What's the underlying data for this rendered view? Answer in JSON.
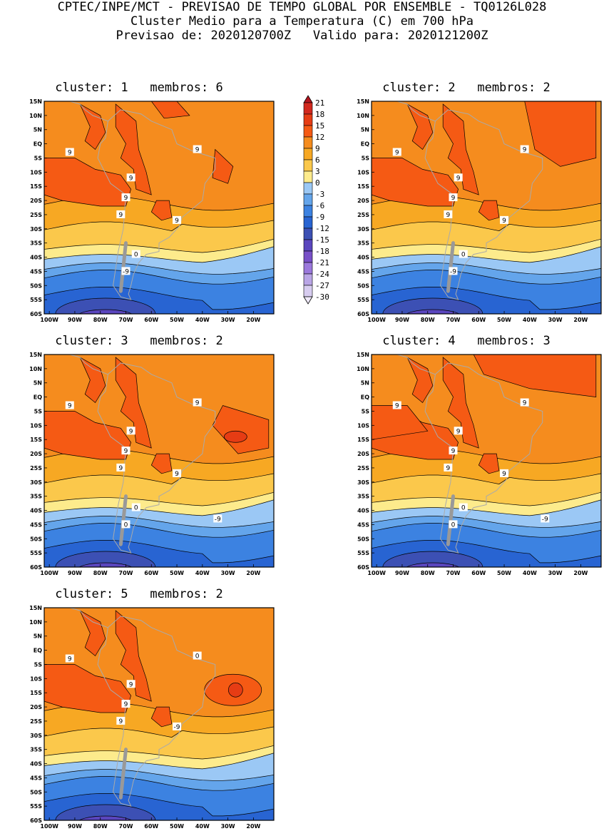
{
  "header": {
    "line1": "CPTEC/INPE/MCT - PREVISAO DE TEMPO GLOBAL POR ENSEMBLE - TQ0126L028",
    "line2": "Cluster Medio para a Temperatura (C) em 700 hPa",
    "line3": "Previsao de: 2020120700Z   Valido para: 2020121200Z"
  },
  "axes": {
    "lat_labels": [
      "15N",
      "10N",
      "5N",
      "EQ",
      "5S",
      "10S",
      "15S",
      "20S",
      "25S",
      "30S",
      "35S",
      "40S",
      "45S",
      "50S",
      "55S",
      "60S"
    ],
    "lon_labels": [
      "100W",
      "90W",
      "80W",
      "70W",
      "60W",
      "50W",
      "40W",
      "30W",
      "20W"
    ]
  },
  "colorbar": {
    "levels": [
      "21",
      "18",
      "15",
      "12",
      "9",
      "6",
      "3",
      "0",
      "-3",
      "-6",
      "-9",
      "-12",
      "-15",
      "-18",
      "-21",
      "-24",
      "-27",
      "-30"
    ],
    "colors": [
      "#b4141e",
      "#d2281e",
      "#e63c14",
      "#f55a14",
      "#f58c1e",
      "#f7a823",
      "#fbc84b",
      "#fdeb8c",
      "#9bc8f5",
      "#64a5eb",
      "#3c82e1",
      "#2864d2",
      "#3c50b4",
      "#5a46be",
      "#7850c8",
      "#9b78dc",
      "#b9a5e6",
      "#d7ccf0",
      "#efe9fa"
    ]
  },
  "clusters": [
    {
      "label": "cluster: 1   membros: 6",
      "contours": [
        "9",
        "9",
        "9",
        "9",
        "9",
        "9",
        "0",
        "-9"
      ]
    },
    {
      "label": "cluster: 2   membros: 2",
      "contours": [
        "9",
        "9",
        "9",
        "9",
        "9",
        "9",
        "0",
        "-9"
      ]
    },
    {
      "label": "cluster: 3   membros: 2",
      "contours": [
        "9",
        "9",
        "9",
        "9",
        "9",
        "9",
        "0",
        "0",
        "-9"
      ]
    },
    {
      "label": "cluster: 4   membros: 3",
      "contours": [
        "9",
        "9",
        "9",
        "9",
        "9",
        "9",
        "0",
        "0",
        "-9"
      ]
    },
    {
      "label": "cluster: 5   membros: 2",
      "contours": [
        "9",
        "9",
        "9",
        "9",
        "0",
        "-9"
      ]
    }
  ]
}
